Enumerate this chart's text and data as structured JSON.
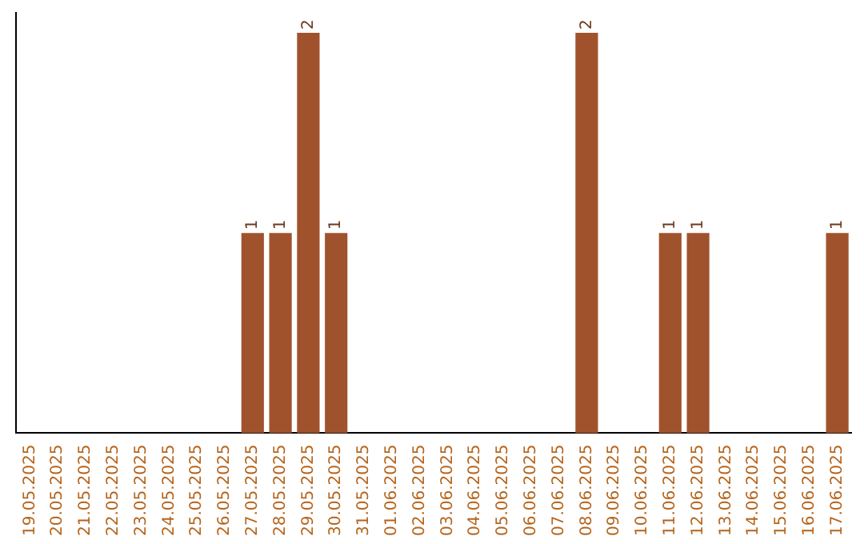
{
  "chart_data": {
    "type": "bar",
    "categories": [
      "19.05.2025",
      "20.05.2025",
      "21.05.2025",
      "22.05.2025",
      "23.05.2025",
      "24.05.2025",
      "25.05.2025",
      "26.05.2025",
      "27.05.2025",
      "28.05.2025",
      "29.05.2025",
      "30.05.2025",
      "31.05.2025",
      "01.06.2025",
      "02.06.2025",
      "03.06.2025",
      "04.06.2025",
      "05.06.2025",
      "06.06.2025",
      "07.06.2025",
      "08.06.2025",
      "09.06.2025",
      "10.06.2025",
      "11.06.2025",
      "12.06.2025",
      "13.06.2025",
      "14.06.2025",
      "15.06.2025",
      "16.06.2025",
      "17.06.2025"
    ],
    "values": [
      0,
      0,
      0,
      0,
      0,
      0,
      0,
      0,
      1,
      1,
      2,
      1,
      0,
      0,
      0,
      0,
      0,
      0,
      0,
      0,
      2,
      0,
      0,
      1,
      1,
      0,
      0,
      0,
      0,
      1
    ],
    "value_labels": [
      null,
      null,
      null,
      null,
      null,
      null,
      null,
      null,
      "1",
      "1",
      "2",
      "1",
      null,
      null,
      null,
      null,
      null,
      null,
      null,
      null,
      "2",
      null,
      null,
      "1",
      "1",
      null,
      null,
      null,
      null,
      "1"
    ],
    "color": "#a0522d",
    "ylim": [
      0,
      2.1
    ],
    "tick_labels": "x",
    "grid": false,
    "legend": false
  }
}
